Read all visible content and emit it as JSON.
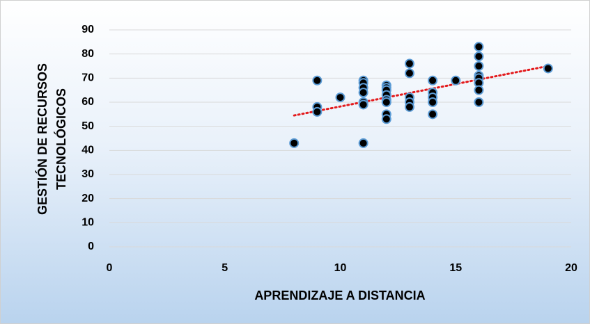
{
  "chart_data": {
    "type": "scatter",
    "x_label": "APRENDIZAJE A DISTANCIA",
    "y_label": [
      "GESTIÓN DE RECURSOS",
      "TECNOLÓGICOS"
    ],
    "xlim": [
      0,
      20
    ],
    "xticks": [
      0,
      5,
      10,
      15,
      20
    ],
    "ylim": [
      0,
      90
    ],
    "yticks": [
      0,
      10,
      20,
      30,
      40,
      50,
      60,
      70,
      80,
      90
    ],
    "grid": true,
    "series": [
      {
        "color": "#000000",
        "edgecolor": "#5b9bd5",
        "x": [
          8,
          9,
          9,
          9,
          10,
          11,
          11,
          11,
          11,
          11,
          11,
          11,
          12,
          12,
          12,
          12,
          12,
          12,
          12,
          12,
          13,
          13,
          13,
          13,
          13,
          14,
          14,
          14,
          14,
          14,
          15,
          16,
          16,
          16,
          16,
          16,
          16,
          16,
          16,
          19
        ],
        "values": [
          43,
          69,
          58,
          56,
          62,
          43,
          69,
          68,
          66,
          64,
          60,
          59,
          67,
          66,
          65,
          63,
          61,
          60,
          55,
          53,
          76,
          72,
          62,
          60,
          58,
          69,
          64,
          62,
          60,
          55,
          69,
          83,
          79,
          75,
          71,
          70,
          68,
          65,
          60,
          74
        ]
      }
    ],
    "trendline": {
      "color": "#e31a1c",
      "x": [
        8,
        19
      ],
      "values": [
        54.5,
        75
      ]
    }
  }
}
